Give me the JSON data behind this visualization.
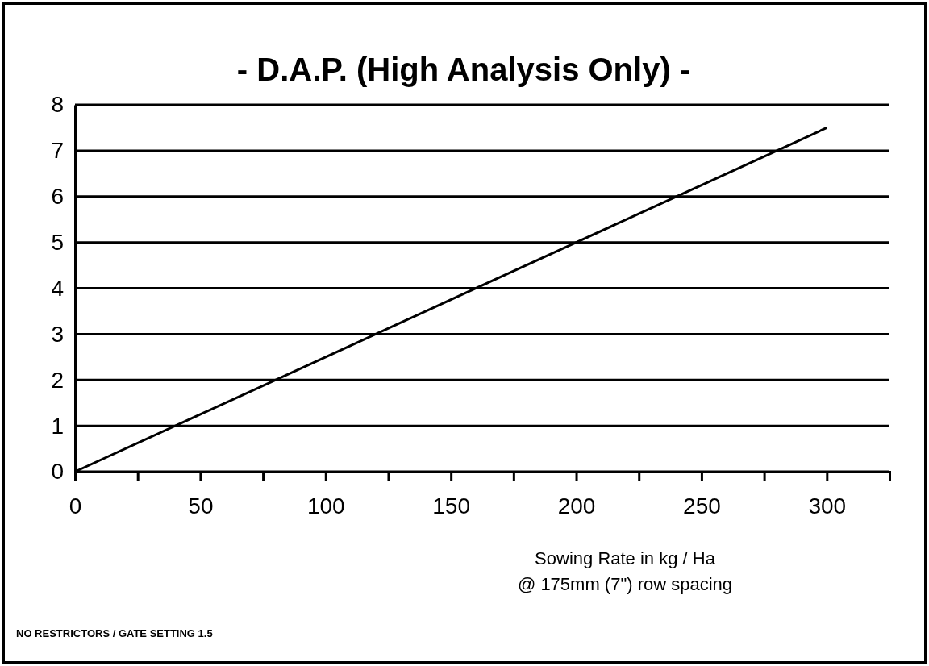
{
  "chart_data": {
    "type": "line",
    "title": "- D.A.P.  (High Analysis Only)  -",
    "xlabel": "Sowing Rate in kg / Ha\n@ 175mm (7\") row spacing",
    "annotations": [
      "NO RESTRICTORS / GATE SETTING 1.5"
    ],
    "x": [
      0,
      50,
      100,
      150,
      200,
      250,
      300
    ],
    "series": [
      {
        "color": "#000000",
        "values": [
          0,
          1.25,
          2.5,
          3.75,
          5,
          6.25,
          7.5
        ]
      }
    ],
    "xlim": [
      0,
      325
    ],
    "xticks": [
      0,
      {
        "value": 25,
        "label": null
      },
      50,
      {
        "value": 75,
        "label": null
      },
      100,
      {
        "value": 125,
        "label": null
      },
      150,
      {
        "value": 175,
        "label": null
      },
      200,
      {
        "value": 225,
        "label": null
      },
      250,
      {
        "value": 275,
        "label": null
      },
      300
    ],
    "ylim": [
      0,
      8
    ],
    "yticks": [
      0,
      1,
      2,
      3,
      4,
      5,
      6,
      7,
      8
    ],
    "grid": "y",
    "marker": "none",
    "line_style": "solid"
  }
}
